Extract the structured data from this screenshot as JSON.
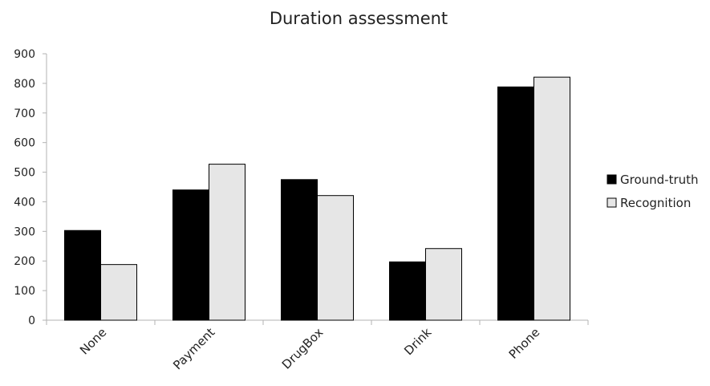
{
  "chart_data": {
    "type": "bar",
    "title": "Duration assessment",
    "xlabel": "",
    "ylabel": "",
    "categories": [
      "None",
      "Payment",
      "DrugBox",
      "Drink",
      "Phone"
    ],
    "series": [
      {
        "name": "Ground-truth",
        "values": [
          303,
          440,
          475,
          197,
          788
        ],
        "color": "#000000"
      },
      {
        "name": "Recognition",
        "values": [
          188,
          527,
          421,
          242,
          821
        ],
        "color": "#e6e6e6"
      }
    ],
    "ylim": [
      0,
      900
    ],
    "yticks": [
      0,
      100,
      200,
      300,
      400,
      500,
      600,
      700,
      800,
      900
    ],
    "grid": false,
    "legend": "right"
  }
}
